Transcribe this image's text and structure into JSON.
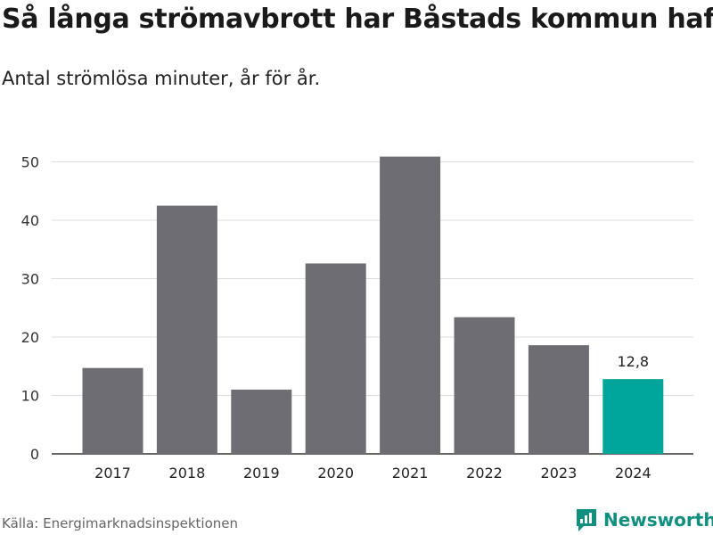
{
  "header": {
    "title": "Så långa strömavbrott har Båstads kommun haft",
    "subtitle": "Antal strömlösa minuter, år för år."
  },
  "footer": {
    "source": "Källa: Energimarknadsinspektionen",
    "brand": "Newsworthy"
  },
  "colors": {
    "bar": "#6e6d73",
    "highlight": "#00a59a",
    "grid": "#dcdcdc",
    "axis": "#333333",
    "brand": "#0f8f80"
  },
  "chart_data": {
    "type": "bar",
    "title": "Så långa strömavbrott har Båstads kommun haft",
    "subtitle": "Antal strömlösa minuter, år för år.",
    "xlabel": "",
    "ylabel": "",
    "categories": [
      "2017",
      "2018",
      "2019",
      "2020",
      "2021",
      "2022",
      "2023",
      "2024"
    ],
    "values": [
      14.7,
      42.5,
      11.0,
      32.6,
      50.9,
      23.4,
      18.6,
      12.8
    ],
    "ylim": [
      0,
      50
    ],
    "yticks": [
      0,
      10,
      20,
      30,
      40,
      50
    ],
    "grid": true,
    "highlight_index": 7,
    "data_labels": [
      {
        "index": 7,
        "text": "12,8"
      }
    ]
  }
}
